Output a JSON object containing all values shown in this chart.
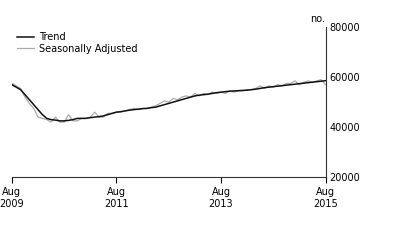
{
  "title": "",
  "ylabel": "no.",
  "ylim": [
    20000,
    80000
  ],
  "yticks": [
    20000,
    40000,
    60000,
    80000
  ],
  "x_tick_labels": [
    "Aug\n2009",
    "Aug\n2011",
    "Aug\n2013",
    "Aug\n2015"
  ],
  "legend_entries": [
    "Trend",
    "Seasonally Adjusted"
  ],
  "trend_color": "#111111",
  "seasonal_color": "#aaaaaa",
  "background_color": "#ffffff",
  "trend_data": [
    57000,
    56000,
    55000,
    53000,
    51000,
    49000,
    47000,
    45000,
    43500,
    43000,
    42800,
    42500,
    42500,
    42700,
    43000,
    43500,
    43500,
    43500,
    43800,
    44000,
    44200,
    44500,
    45000,
    45500,
    46000,
    46200,
    46500,
    46800,
    47000,
    47200,
    47400,
    47500,
    47800,
    48000,
    48500,
    49000,
    49500,
    50000,
    50500,
    51000,
    51500,
    52000,
    52500,
    52800,
    53000,
    53200,
    53500,
    53800,
    54000,
    54200,
    54400,
    54500,
    54600,
    54700,
    54800,
    55000,
    55200,
    55500,
    55800,
    56000,
    56200,
    56400,
    56600,
    56800,
    57000,
    57200,
    57400,
    57600,
    57800,
    58000,
    58200,
    58400,
    58600
  ],
  "seasonal_data": [
    57500,
    56500,
    55500,
    52000,
    49500,
    47500,
    44000,
    43500,
    43000,
    42000,
    44000,
    42000,
    42000,
    45000,
    42500,
    42500,
    43500,
    43500,
    44000,
    46000,
    44000,
    44000,
    45500,
    45500,
    46000,
    46000,
    46500,
    47000,
    47500,
    47000,
    47500,
    47500,
    48000,
    48500,
    49500,
    50500,
    50000,
    51500,
    51000,
    52000,
    52500,
    52000,
    53500,
    52500,
    53500,
    53000,
    54000,
    53500,
    54000,
    53500,
    54500,
    54000,
    54500,
    54500,
    55000,
    55000,
    55500,
    56500,
    55500,
    56500,
    56000,
    57000,
    56500,
    57500,
    57500,
    58500,
    57000,
    58000,
    58500,
    58000,
    58500,
    59000,
    57000
  ]
}
